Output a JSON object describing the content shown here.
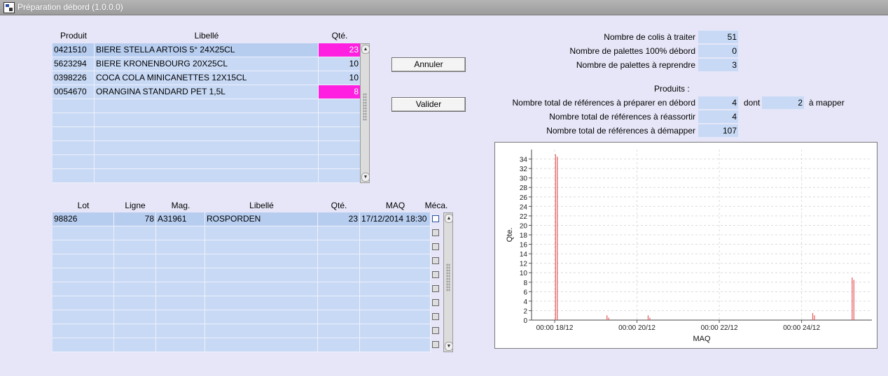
{
  "window": {
    "title": "Préparation débord (1.0.0.0)",
    "icon": "app-icon"
  },
  "products_table": {
    "headers": {
      "product": "Produit",
      "label": "Libellé",
      "qty": "Qté."
    },
    "rows": [
      {
        "product": "0421510",
        "label": "BIERE STELLA ARTOIS 5° 24X25CL",
        "qty": "23",
        "highlight": true
      },
      {
        "product": "5623294",
        "label": "BIERE KRONENBOURG 20X25CL",
        "qty": "10",
        "highlight": false
      },
      {
        "product": "0398226",
        "label": "COCA COLA MINICANETTES 12X15CL",
        "qty": "10",
        "highlight": false
      },
      {
        "product": "0054670",
        "label": "ORANGINA STANDARD PET 1,5L",
        "qty": "8",
        "highlight": true
      }
    ],
    "empty_rows": 6,
    "highlight_color": "#ff1fe0"
  },
  "buttons": {
    "cancel": "Annuler",
    "validate": "Valider"
  },
  "lots_table": {
    "headers": {
      "lot": "Lot",
      "line": "Ligne",
      "store": "Mag.",
      "label": "Libellé",
      "qty": "Qté.",
      "maq": "MAQ",
      "meca": "Méca."
    },
    "rows": [
      {
        "lot": "98826",
        "line": "78",
        "store": "A31961",
        "label": "ROSPORDEN",
        "qty": "23",
        "maq": "17/12/2014 18:30",
        "meca": false
      }
    ],
    "empty_rows": 9
  },
  "stats": {
    "colis_label": "Nombre de colis à traiter",
    "colis_value": "51",
    "palettes_debord_label": "Nombre de palettes 100% débord",
    "palettes_debord_value": "0",
    "palettes_reprendre_label": "Nombre de palettes à reprendre",
    "palettes_reprendre_value": "3",
    "produits_heading": "Produits :",
    "refs_debord_label": "Nombre total de références à préparer en débord",
    "refs_debord_value": "4",
    "dont_label": "dont",
    "mapper_value": "2",
    "mapper_label": "à mapper",
    "refs_reassortir_label": "Nombre total de références à réassortir",
    "refs_reassortir_value": "4",
    "refs_demapper_label": "Nombre total de références à démapper",
    "refs_demapper_value": "107"
  },
  "chart_data": {
    "type": "bar",
    "xlabel": "MAQ",
    "ylabel": "Qte.",
    "ylim": [
      0,
      36
    ],
    "yticks": [
      "0",
      "2",
      "4",
      "6",
      "8",
      "10",
      "12",
      "14",
      "16",
      "18",
      "20",
      "22",
      "24",
      "26",
      "28",
      "30",
      "32",
      "34"
    ],
    "xticks": [
      {
        "label": "00:00 18/12",
        "hours": 0
      },
      {
        "label": "00:00 20/12",
        "hours": 48
      },
      {
        "label": "00:00 22/12",
        "hours": 96
      },
      {
        "label": "00:00 24/12",
        "hours": 144
      }
    ],
    "xlim_hours": [
      -13.5,
      185
    ],
    "grid": true,
    "bar_color": "#e45a5a",
    "points": [
      {
        "hours": 0.5,
        "value": 35
      },
      {
        "hours": 1.5,
        "value": 34.5
      },
      {
        "hours": 30.5,
        "value": 1
      },
      {
        "hours": 31.5,
        "value": 0.5
      },
      {
        "hours": 54.5,
        "value": 1
      },
      {
        "hours": 55.5,
        "value": 0.5
      },
      {
        "hours": 150.5,
        "value": 1.5
      },
      {
        "hours": 151.5,
        "value": 1
      },
      {
        "hours": 173.5,
        "value": 9
      },
      {
        "hours": 174.5,
        "value": 8.5
      }
    ]
  }
}
